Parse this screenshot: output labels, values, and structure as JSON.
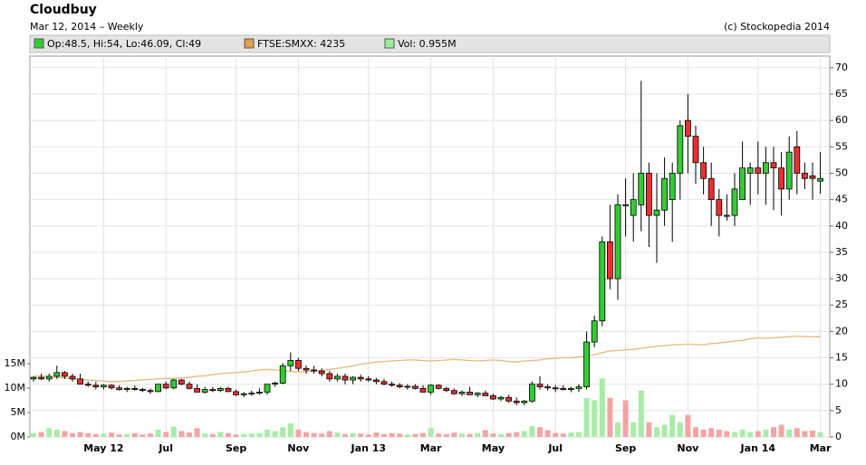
{
  "chart_data": {
    "type": "candlestick",
    "title": "Cloudbuy",
    "subtitle": "Mar 12, 2014 – Weekly",
    "source": "(c) Stockopedia 2014",
    "legend": [
      {
        "label": "Op:48.5, Hi:54, Lo:46.09, Cl:49",
        "color": "#33cc33"
      },
      {
        "label": "FTSE:SMXX: 4235",
        "color": "#e0a050"
      },
      {
        "label": "Vol: 0.955M",
        "color": "#99ee99"
      }
    ],
    "up_color": "#33cc33",
    "down_color": "#e83030",
    "volume_up_color": "#a8eca8",
    "volume_down_color": "#f4a4a4",
    "line_color": "#e8b878",
    "grid": true,
    "categories": [
      null,
      null,
      null,
      null,
      null,
      null,
      null,
      null,
      null,
      "May 12",
      null,
      null,
      null,
      null,
      null,
      null,
      null,
      "Jul",
      null,
      null,
      null,
      null,
      null,
      null,
      null,
      null,
      "Sep",
      null,
      null,
      null,
      null,
      null,
      null,
      null,
      "Nov",
      null,
      null,
      null,
      null,
      null,
      null,
      null,
      null,
      "Jan 13",
      null,
      null,
      null,
      null,
      null,
      null,
      null,
      "Mar",
      null,
      null,
      null,
      null,
      null,
      null,
      null,
      "May",
      null,
      null,
      null,
      null,
      null,
      null,
      null,
      "Jul",
      null,
      null,
      null,
      null,
      null,
      null,
      null,
      null,
      "Sep",
      null,
      null,
      null,
      null,
      null,
      null,
      null,
      "Nov",
      null,
      null,
      null,
      null,
      null,
      null,
      null,
      null,
      "Jan 14",
      null,
      null,
      null,
      null,
      null,
      null,
      null,
      "Mar"
    ],
    "open": [
      11,
      11.3,
      11,
      11.5,
      12.2,
      11.5,
      11,
      10,
      9.8,
      9.5,
      9.8,
      9.3,
      9,
      9.2,
      9,
      8.8,
      8.6,
      10,
      9.3,
      10.8,
      10,
      9.2,
      8.5,
      9,
      8.8,
      9.2,
      8.6,
      8,
      8.2,
      8.3,
      8.5,
      10,
      10.2,
      13.5,
      14.5,
      13,
      12.7,
      12.5,
      12,
      11,
      11.5,
      10.8,
      11.3,
      11,
      10.8,
      10.5,
      10,
      9.8,
      9.5,
      9.6,
      9.2,
      8.5,
      9.8,
      9.2,
      8.8,
      8.2,
      8.5,
      8,
      8.3,
      7.8,
      7.2,
      7.5,
      6.8,
      6.5,
      6.8,
      10,
      9.5,
      9.3,
      9.2,
      9,
      9.2,
      9.5,
      18,
      22,
      37,
      30,
      44,
      42,
      44,
      50,
      42,
      43,
      45,
      50,
      60,
      57,
      52,
      49,
      45,
      42,
      42,
      45,
      50,
      51,
      50,
      52,
      51,
      47,
      55,
      50,
      49.5,
      48.5
    ],
    "high": [
      11.5,
      12,
      12,
      13.5,
      12.5,
      12,
      12,
      10.5,
      10.5,
      10,
      10,
      9.8,
      9.5,
      9.8,
      9.3,
      9.2,
      10,
      10.5,
      11,
      11,
      10.5,
      10,
      9.5,
      9.5,
      9.5,
      9.5,
      9,
      8.5,
      8.8,
      9.2,
      10,
      10.5,
      14,
      16,
      15,
      13.5,
      13.5,
      13,
      12.5,
      12,
      12,
      11.5,
      11.8,
      11.5,
      11.2,
      11,
      10.5,
      10.2,
      10,
      10,
      9.8,
      10,
      10,
      9.5,
      9.2,
      8.8,
      9.5,
      8.5,
      8.8,
      8.2,
      7.8,
      8,
      7.5,
      7,
      10.5,
      11.5,
      10,
      9.8,
      9.8,
      9.5,
      10,
      20,
      23,
      38,
      44,
      46,
      49,
      50,
      67.5,
      52,
      50,
      53,
      52,
      60,
      65,
      59,
      55,
      52,
      47,
      46,
      50,
      56,
      52,
      56,
      55,
      55,
      54,
      57,
      58,
      52,
      52,
      54
    ],
    "low": [
      10.5,
      10.8,
      10.5,
      11,
      11,
      10.5,
      10,
      9.5,
      9,
      9,
      9,
      8.8,
      8.5,
      8.8,
      8.5,
      8.2,
      8.5,
      9,
      9,
      9.8,
      9,
      8.5,
      8.2,
      8.5,
      8.5,
      8.5,
      7.8,
      7.5,
      7.8,
      8,
      8,
      9.5,
      10,
      12.5,
      12.5,
      12,
      12,
      11.5,
      10.5,
      10.5,
      10,
      10,
      10.5,
      10.5,
      10,
      9.8,
      9.5,
      9.2,
      9,
      9,
      8.5,
      8,
      9,
      8.5,
      8,
      7.8,
      8,
      7.5,
      7.8,
      7,
      6.8,
      6.5,
      6,
      6,
      6.5,
      9,
      8.8,
      8.5,
      8.8,
      8.5,
      8.5,
      9,
      17,
      21,
      28,
      26,
      38,
      37,
      39,
      36,
      33,
      40,
      37,
      45,
      50,
      48,
      46,
      40,
      38,
      41,
      40,
      45,
      44,
      46,
      44,
      43,
      42,
      45,
      46,
      47,
      45,
      46.09
    ],
    "close": [
      11.3,
      11,
      11.5,
      12.2,
      11.5,
      11,
      10,
      9.8,
      9.5,
      9.8,
      9.3,
      9,
      9.2,
      9,
      8.8,
      8.6,
      10,
      9.3,
      10.8,
      10,
      9.2,
      8.5,
      9,
      8.8,
      9.2,
      8.6,
      8,
      8.2,
      8.3,
      8.5,
      10,
      10.2,
      13.5,
      14.5,
      13,
      12.7,
      12.5,
      12,
      11,
      11.5,
      10.8,
      11.3,
      11,
      10.8,
      10.5,
      10,
      9.8,
      9.5,
      9.6,
      9.2,
      8.5,
      9.8,
      9.2,
      8.8,
      8.2,
      8.5,
      8,
      8.3,
      7.8,
      7.2,
      7.5,
      6.8,
      6.5,
      6.8,
      10,
      9.5,
      9.3,
      9.2,
      9,
      9.2,
      9.5,
      18,
      22,
      37,
      30,
      44,
      44,
      45,
      50,
      42,
      43,
      49,
      50,
      59,
      57,
      52,
      49,
      45,
      42,
      42,
      47,
      51,
      51,
      50,
      52,
      51,
      47,
      54,
      50,
      49,
      49,
      49
    ],
    "volume": [
      0.8,
      1,
      1.8,
      1.5,
      1.2,
      0.8,
      1,
      0.8,
      0.6,
      0.7,
      0.9,
      0.5,
      0.6,
      0.8,
      0.5,
      0.7,
      1.5,
      1,
      2.1,
      1.2,
      0.9,
      1.8,
      0.7,
      0.6,
      1,
      0.8,
      0.5,
      0.6,
      0.7,
      0.8,
      1.5,
      1.2,
      2,
      2.8,
      1.5,
      1,
      0.8,
      0.7,
      1.2,
      0.9,
      0.6,
      0.8,
      0.7,
      0.5,
      0.9,
      0.6,
      0.8,
      0.7,
      0.5,
      0.6,
      0.8,
      1.8,
      0.7,
      0.6,
      0.9,
      0.7,
      0.6,
      0.8,
      1.4,
      0.7,
      0.6,
      0.8,
      1,
      1.2,
      2.2,
      2,
      1.4,
      0.8,
      0.7,
      0.9,
      1,
      8,
      7.5,
      12,
      8,
      3,
      7.5,
      3,
      9.5,
      3,
      2,
      2.5,
      4.5,
      3,
      4.5,
      2,
      1.5,
      1.8,
      1.5,
      1.2,
      1,
      1.5,
      1,
      1.2,
      1.5,
      2,
      2.5,
      1.5,
      1.8,
      1.2,
      1.3,
      0.955
    ],
    "line": [
      11.5,
      11.6,
      11.4,
      11.3,
      11.2,
      11,
      10.9,
      10.8,
      10.7,
      10.6,
      10.5,
      10.5,
      10.6,
      10.7,
      10.8,
      10.9,
      11,
      11.1,
      11.1,
      11.2,
      11.3,
      11.5,
      11.6,
      11.8,
      12,
      12.1,
      12.2,
      12.3,
      12.5,
      12.7,
      12.8,
      12.7,
      12.6,
      12.4,
      12.3,
      12.4,
      12.5,
      12.6,
      12.8,
      13,
      13.2,
      13.5,
      13.8,
      14,
      14.2,
      14.3,
      14.4,
      14.5,
      14.6,
      14.6,
      14.5,
      14.4,
      14.5,
      14.6,
      14.7,
      14.6,
      14.5,
      14.4,
      14.5,
      14.6,
      14.5,
      14.3,
      14.2,
      14.4,
      14.5,
      14.6,
      14.8,
      14.9,
      15,
      15,
      15.2,
      15.3,
      15.6,
      16,
      16.3,
      16.4,
      16.5,
      16.6,
      16.8,
      17,
      17.2,
      17.3,
      17.5,
      17.5,
      17.6,
      17.5,
      17.5,
      17.7,
      17.8,
      18,
      18.2,
      18.3,
      18.6,
      18.8,
      18.7,
      18.8,
      18.9,
      19,
      19.1,
      19,
      19,
      19
    ],
    "ylim": [
      0,
      72.2
    ],
    "yticks": [
      0,
      5,
      10,
      15,
      20,
      25,
      30,
      35,
      40,
      45,
      50,
      55,
      60,
      65,
      70
    ],
    "y2lim": [
      0,
      78
    ],
    "y2ticks": [
      {
        "value": 0,
        "label": "0M"
      },
      {
        "value": 5,
        "label": "5M"
      },
      {
        "value": 10,
        "label": "10M"
      },
      {
        "value": 15,
        "label": "15M"
      }
    ]
  }
}
